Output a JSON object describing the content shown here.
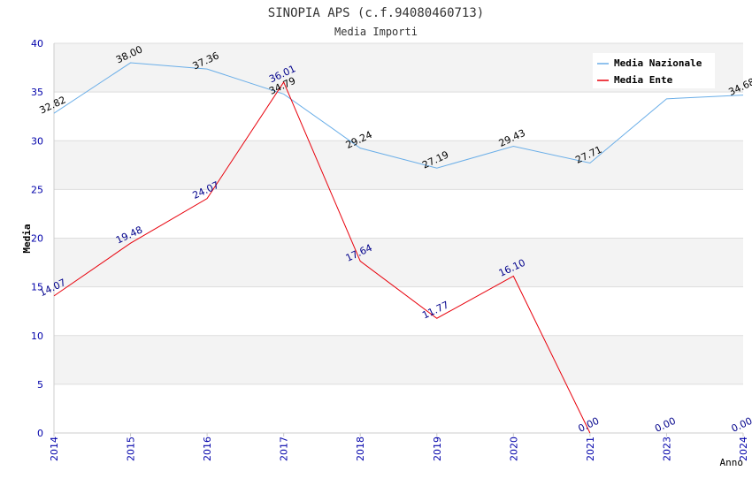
{
  "chart_data": {
    "type": "line",
    "title": "SINOPIA APS (c.f.94080460713)",
    "subtitle": "Media Importi",
    "xlabel": "Anno",
    "ylabel": "Media",
    "categories": [
      "2014",
      "2015",
      "2016",
      "2017",
      "2018",
      "2019",
      "2020",
      "2021",
      "2023",
      "2024"
    ],
    "ylim": [
      0,
      40
    ],
    "yticks": [
      "0",
      "5",
      "10",
      "15",
      "20",
      "25",
      "30",
      "35",
      "40"
    ],
    "grid": true,
    "legend_position": "top-right",
    "series": [
      {
        "name": "Media Nazionale",
        "color": "#6aaee8",
        "label_color": "#000000",
        "values": [
          32.82,
          38.0,
          37.36,
          34.79,
          29.24,
          27.19,
          29.43,
          27.71,
          34.3,
          34.68
        ],
        "labels": [
          "32.82",
          "38.00",
          "37.36",
          "34.79",
          "29.24",
          "27.19",
          "29.43",
          "27.71",
          "",
          "34.68"
        ]
      },
      {
        "name": "Media Ente",
        "color": "#e8000b",
        "label_color": "#00008b",
        "values": [
          14.07,
          19.48,
          24.07,
          36.01,
          17.64,
          11.77,
          16.1,
          0.0,
          0.0,
          0.0
        ],
        "labels": [
          "14.07",
          "19.48",
          "24.07",
          "36.01",
          "17.64",
          "11.77",
          "16.10",
          "0.00",
          "0.00",
          "0.00"
        ],
        "line_points": 8
      }
    ]
  }
}
